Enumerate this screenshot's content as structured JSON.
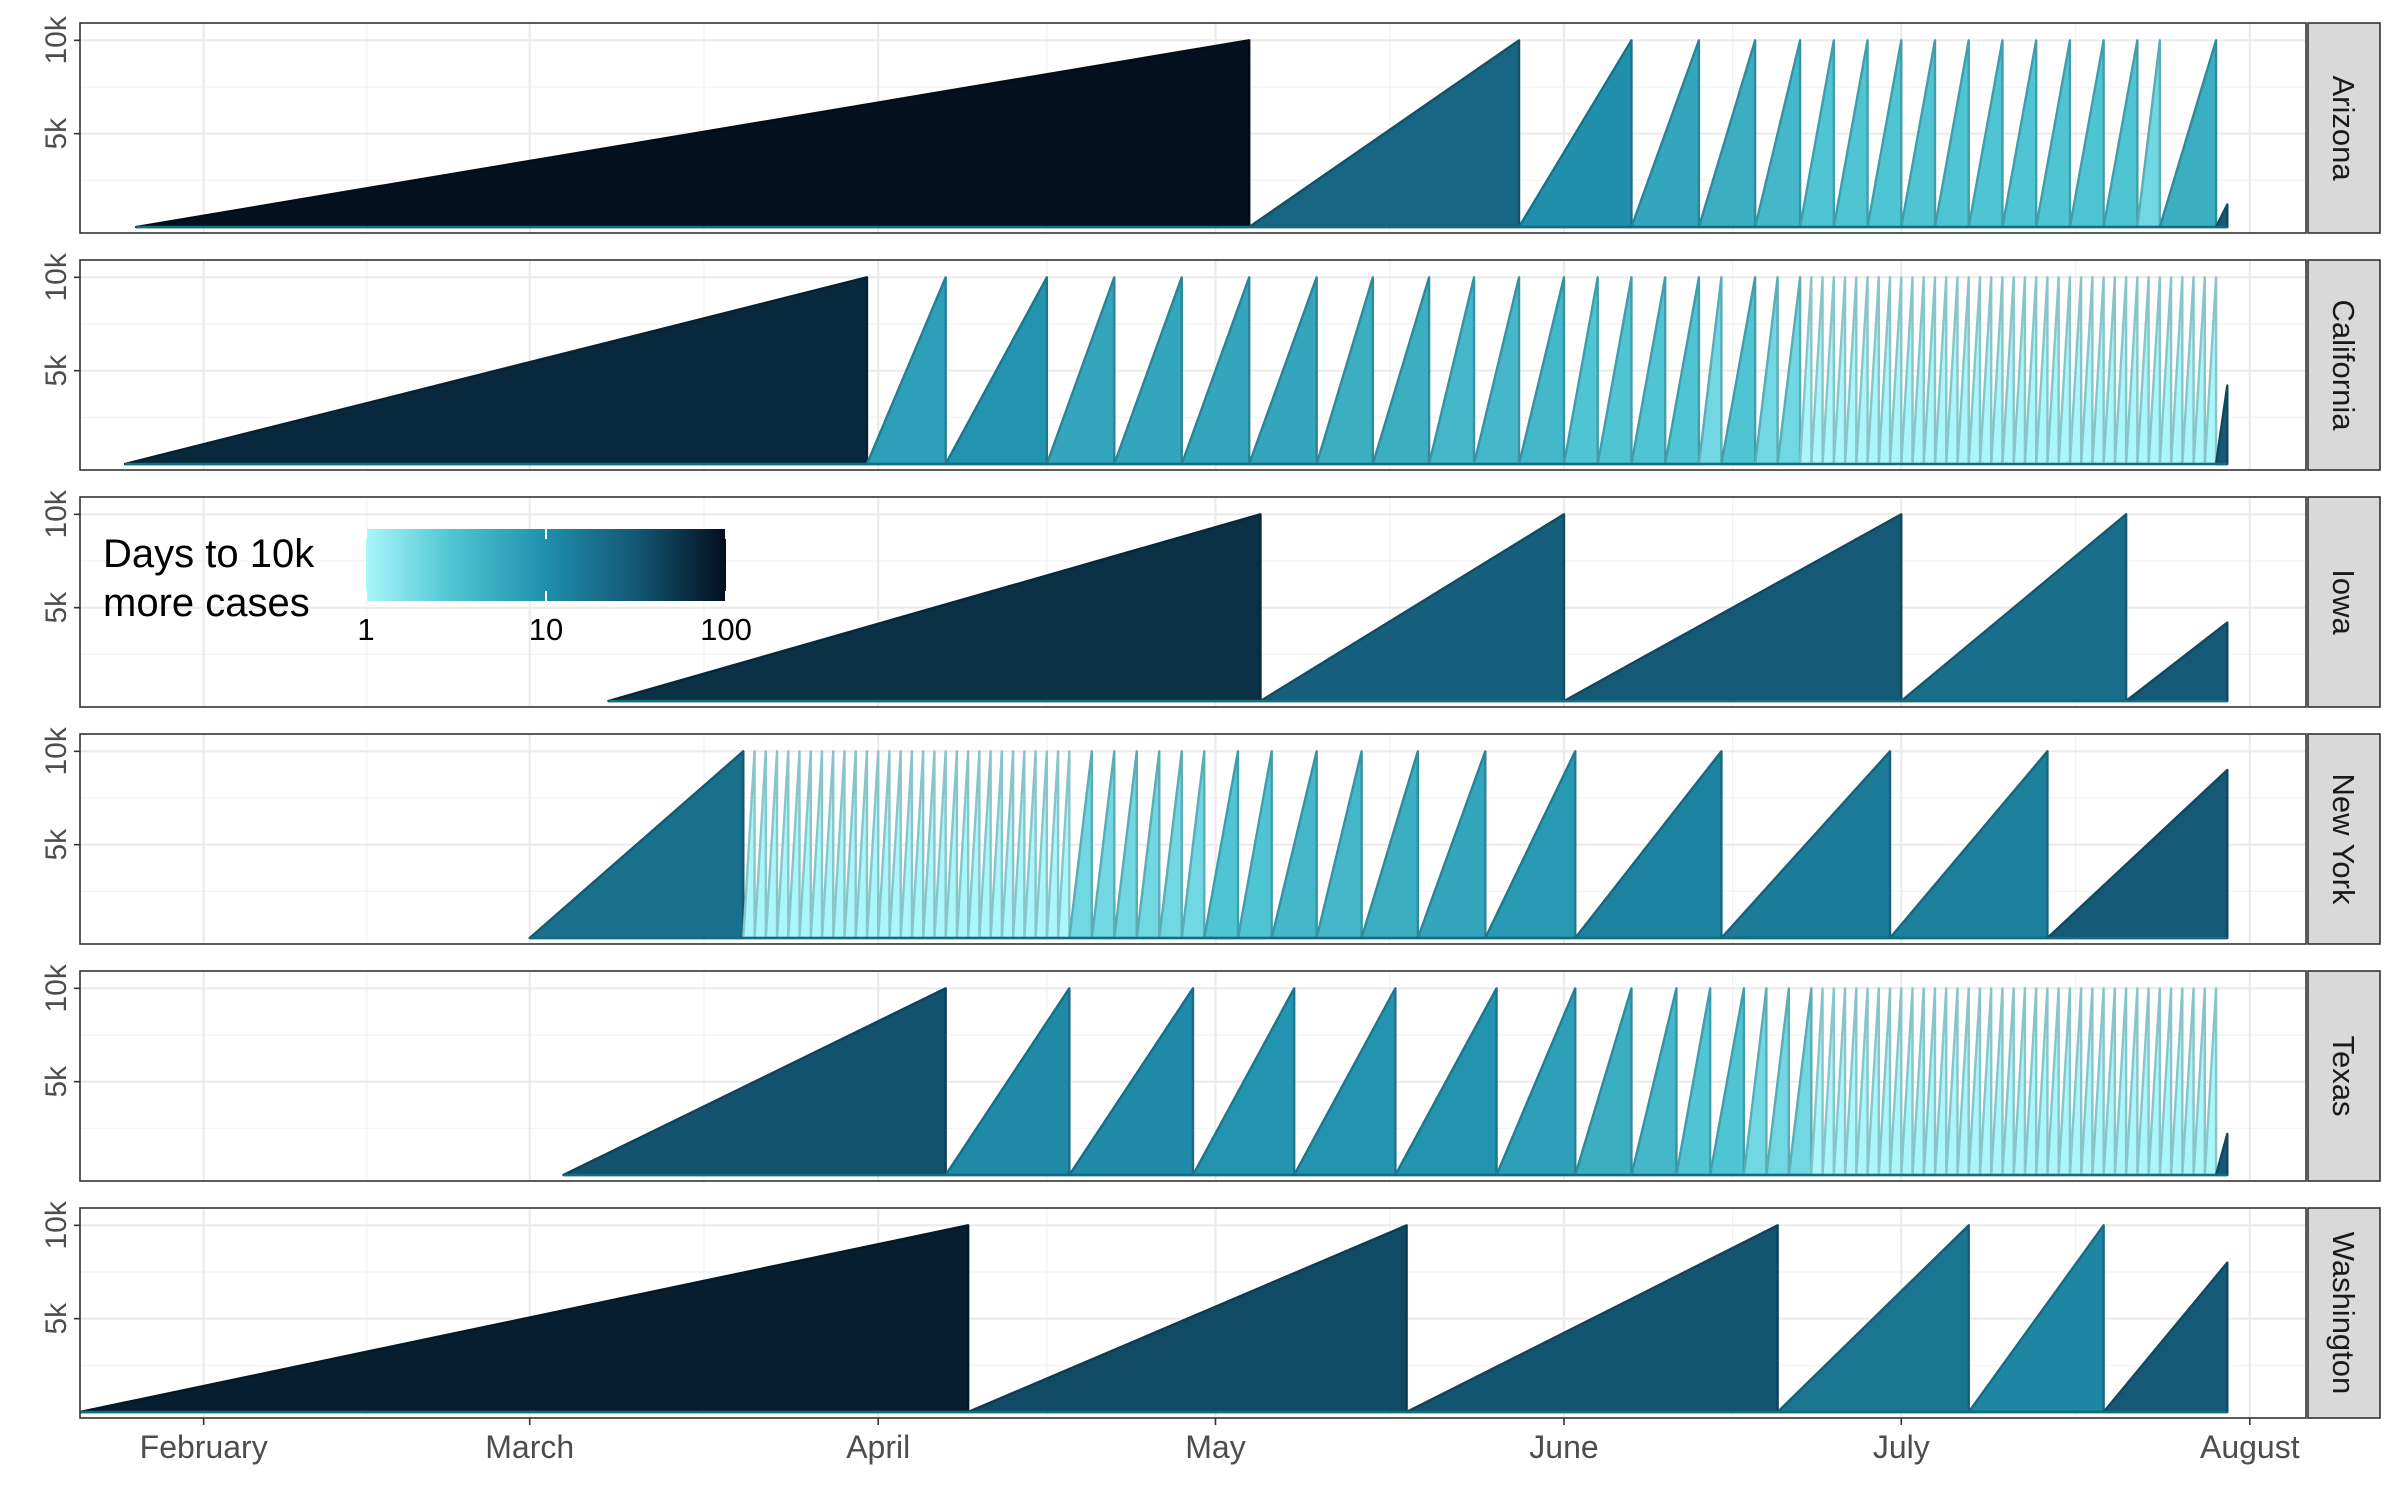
{
  "chart_data": {
    "type": "area",
    "title": "",
    "xlabel": "",
    "ylabel": "",
    "x_axis": {
      "type": "date",
      "range": [
        "2020-01-21",
        "2020-08-06"
      ],
      "ticks": [
        {
          "date": "2020-02-01",
          "label": "February"
        },
        {
          "date": "2020-03-01",
          "label": "March"
        },
        {
          "date": "2020-04-01",
          "label": "April"
        },
        {
          "date": "2020-05-01",
          "label": "May"
        },
        {
          "date": "2020-06-01",
          "label": "June"
        },
        {
          "date": "2020-07-01",
          "label": "July"
        },
        {
          "date": "2020-08-01",
          "label": "August"
        }
      ]
    },
    "y_axis": {
      "range": [
        0,
        10500
      ],
      "ticks": [
        {
          "value": 5000,
          "label": "5k"
        },
        {
          "value": 10000,
          "label": "10k"
        }
      ]
    },
    "grid": true,
    "color_scale": {
      "title": "Days to 10k more cases",
      "title_lines": [
        "Days to 10k",
        "more cases"
      ],
      "log": true,
      "domain": [
        1,
        100
      ],
      "ticks": [
        {
          "value": 1,
          "label": "1"
        },
        {
          "value": 10,
          "label": "10"
        },
        {
          "value": 100,
          "label": "100"
        }
      ],
      "color_stops": [
        {
          "value": 1,
          "color": "#aaf6fb"
        },
        {
          "value": 3,
          "color": "#4fc5d3"
        },
        {
          "value": 10,
          "color": "#1f8fac"
        },
        {
          "value": 30,
          "color": "#145a77"
        },
        {
          "value": 100,
          "color": "#020f1e"
        }
      ],
      "legend_position": "inside Iowa panel, top-left"
    },
    "panels": [
      {
        "name": "Arizona",
        "start": "2020-01-26",
        "breaks": [
          "2020-05-04",
          "2020-05-28",
          "2020-06-07",
          "2020-06-13",
          "2020-06-18",
          "2020-06-22",
          "2020-06-25",
          "2020-06-28",
          "2020-07-01",
          "2020-07-04",
          "2020-07-07",
          "2020-07-10",
          "2020-07-13",
          "2020-07-16",
          "2020-07-19",
          "2020-07-22",
          "2020-07-24",
          "2020-07-29"
        ],
        "last": {
          "date": "2020-07-30",
          "value": 1200
        }
      },
      {
        "name": "California",
        "start": "2020-01-25",
        "breaks": [
          "2020-03-31",
          "2020-04-07",
          "2020-04-16",
          "2020-04-22",
          "2020-04-28",
          "2020-05-04",
          "2020-05-10",
          "2020-05-15",
          "2020-05-20",
          "2020-05-24",
          "2020-05-28",
          "2020-06-01",
          "2020-06-04",
          "2020-06-07",
          "2020-06-10",
          "2020-06-13",
          "2020-06-15",
          "2020-06-18",
          "2020-06-20",
          "2020-06-22",
          "2020-06-23",
          "2020-06-24",
          "2020-06-25",
          "2020-06-26",
          "2020-06-27",
          "2020-06-28",
          "2020-06-29",
          "2020-06-30",
          "2020-07-01",
          "2020-07-02",
          "2020-07-03",
          "2020-07-04",
          "2020-07-05",
          "2020-07-06",
          "2020-07-07",
          "2020-07-08",
          "2020-07-09",
          "2020-07-10",
          "2020-07-11",
          "2020-07-12",
          "2020-07-13",
          "2020-07-14",
          "2020-07-15",
          "2020-07-16",
          "2020-07-17",
          "2020-07-18",
          "2020-07-19",
          "2020-07-20",
          "2020-07-21",
          "2020-07-22",
          "2020-07-23",
          "2020-07-24",
          "2020-07-25",
          "2020-07-26",
          "2020-07-27",
          "2020-07-28",
          "2020-07-29"
        ],
        "last": {
          "date": "2020-07-30",
          "value": 4200
        }
      },
      {
        "name": "Iowa",
        "start": "2020-03-08",
        "breaks": [
          "2020-05-05",
          "2020-06-01",
          "2020-07-01",
          "2020-07-21"
        ],
        "last": {
          "date": "2020-07-30",
          "value": 4200
        }
      },
      {
        "name": "New York",
        "start": "2020-03-01",
        "breaks": [
          "2020-03-20",
          "2020-03-21",
          "2020-03-22",
          "2020-03-23",
          "2020-03-24",
          "2020-03-25",
          "2020-03-26",
          "2020-03-27",
          "2020-03-28",
          "2020-03-29",
          "2020-03-30",
          "2020-03-31",
          "2020-04-01",
          "2020-04-02",
          "2020-04-03",
          "2020-04-04",
          "2020-04-05",
          "2020-04-06",
          "2020-04-07",
          "2020-04-08",
          "2020-04-09",
          "2020-04-10",
          "2020-04-11",
          "2020-04-12",
          "2020-04-13",
          "2020-04-14",
          "2020-04-15",
          "2020-04-16",
          "2020-04-17",
          "2020-04-18",
          "2020-04-20",
          "2020-04-22",
          "2020-04-24",
          "2020-04-26",
          "2020-04-28",
          "2020-04-30",
          "2020-05-03",
          "2020-05-06",
          "2020-05-10",
          "2020-05-14",
          "2020-05-19",
          "2020-05-25",
          "2020-06-02",
          "2020-06-15",
          "2020-06-30",
          "2020-07-14"
        ],
        "last": {
          "date": "2020-07-30",
          "value": 9000
        }
      },
      {
        "name": "Texas",
        "start": "2020-03-04",
        "breaks": [
          "2020-04-07",
          "2020-04-18",
          "2020-04-29",
          "2020-05-08",
          "2020-05-17",
          "2020-05-26",
          "2020-06-02",
          "2020-06-07",
          "2020-06-11",
          "2020-06-14",
          "2020-06-17",
          "2020-06-19",
          "2020-06-21",
          "2020-06-23",
          "2020-06-24",
          "2020-06-25",
          "2020-06-26",
          "2020-06-27",
          "2020-06-28",
          "2020-06-29",
          "2020-06-30",
          "2020-07-01",
          "2020-07-02",
          "2020-07-03",
          "2020-07-04",
          "2020-07-05",
          "2020-07-06",
          "2020-07-07",
          "2020-07-08",
          "2020-07-09",
          "2020-07-10",
          "2020-07-11",
          "2020-07-12",
          "2020-07-13",
          "2020-07-14",
          "2020-07-15",
          "2020-07-16",
          "2020-07-17",
          "2020-07-18",
          "2020-07-19",
          "2020-07-20",
          "2020-07-21",
          "2020-07-22",
          "2020-07-23",
          "2020-07-24",
          "2020-07-25",
          "2020-07-26",
          "2020-07-27",
          "2020-07-28",
          "2020-07-29"
        ],
        "last": {
          "date": "2020-07-30",
          "value": 2200
        }
      },
      {
        "name": "Washington",
        "start": "2020-01-21",
        "breaks": [
          "2020-04-09",
          "2020-05-18",
          "2020-06-20",
          "2020-07-07",
          "2020-07-19"
        ],
        "last": {
          "date": "2020-07-30",
          "value": 8000
        }
      }
    ]
  }
}
